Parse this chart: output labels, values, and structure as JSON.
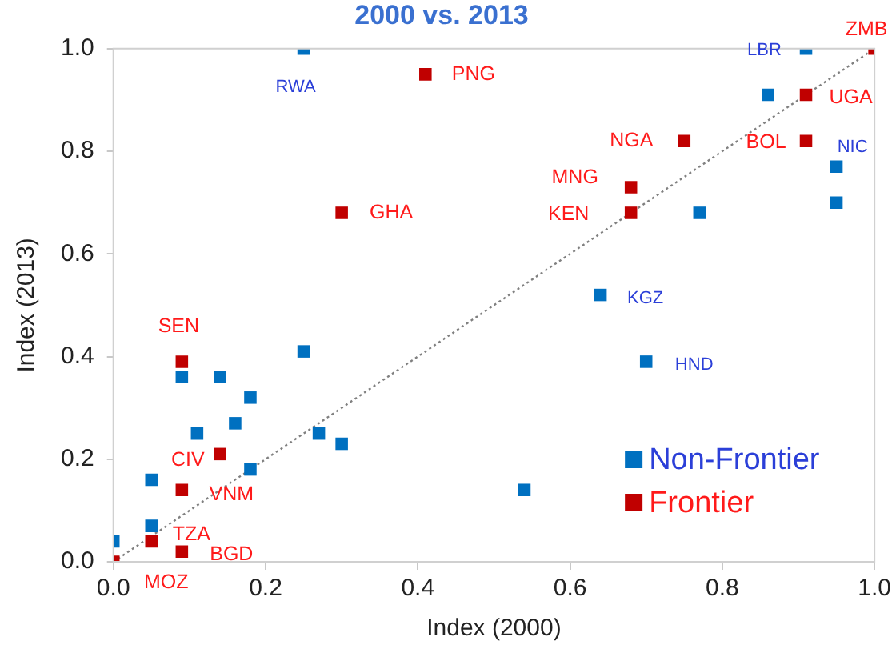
{
  "chart_data": {
    "type": "scatter",
    "title": "2000 vs. 2013",
    "xlabel": "Index (2000)",
    "ylabel": "Index (2013)",
    "xlim": [
      0,
      1
    ],
    "ylim": [
      0,
      1
    ],
    "xticks": [
      {
        "value": 0,
        "label": "0.0"
      },
      {
        "value": 0.2,
        "label": "0.2"
      },
      {
        "value": 0.4,
        "label": "0.4"
      },
      {
        "value": 0.6,
        "label": "0.6"
      },
      {
        "value": 0.8,
        "label": "0.8"
      },
      {
        "value": 1,
        "label": "1.0"
      }
    ],
    "yticks": [
      {
        "value": 0,
        "label": "0.0"
      },
      {
        "value": 0.2,
        "label": "0.2"
      },
      {
        "value": 0.4,
        "label": "0.4"
      },
      {
        "value": 0.6,
        "label": "0.6"
      },
      {
        "value": 0.8,
        "label": "0.8"
      },
      {
        "value": 1,
        "label": "1.0"
      }
    ],
    "grid": false,
    "legend": "bottom right",
    "marker": "square",
    "series": [
      {
        "name": "Non-Frontier",
        "color": "#0070c0",
        "x": [
          0.25,
          0.91,
          0.86,
          0.95,
          0.95,
          0.77,
          0.64,
          0.7,
          0.54,
          0,
          0.05,
          0.05,
          0.09,
          0.14,
          0.11,
          0.16,
          0.18,
          0.18,
          0.25,
          0.27,
          0.3
        ],
        "values": [
          1.0,
          1.0,
          0.91,
          0.77,
          0.7,
          0.68,
          0.52,
          0.39,
          0.14,
          0.04,
          0.16,
          0.07,
          0.36,
          0.36,
          0.25,
          0.27,
          0.32,
          0.18,
          0.41,
          0.25,
          0.23
        ]
      },
      {
        "name": "Frontier",
        "color": "#c00000",
        "x": [
          1.0,
          0.91,
          0.91,
          0.41,
          0.75,
          0.68,
          0.68,
          0.3,
          0.09,
          0.14,
          0.09,
          0.05,
          0.09,
          0
        ],
        "values": [
          1.0,
          0.91,
          0.82,
          0.95,
          0.82,
          0.73,
          0.68,
          0.68,
          0.39,
          0.21,
          0.14,
          0.04,
          0.02,
          0
        ]
      },
      {
        "type": "line",
        "color": "#808080",
        "line_style": "dotted",
        "marker": "none",
        "x": [
          0,
          1
        ],
        "values": [
          0,
          1
        ]
      }
    ],
    "annotations": [
      {
        "text": "RWA",
        "x": 0.25,
        "y": 1.0
      },
      {
        "text": "LBR",
        "x": 0.91,
        "y": 1.0
      },
      {
        "text": "NIC",
        "x": 0.95,
        "y": 0.77
      },
      {
        "text": "KGZ",
        "x": 0.64,
        "y": 0.52
      },
      {
        "text": "HND",
        "x": 0.7,
        "y": 0.39
      },
      {
        "text": "ZMB",
        "x": 1.0,
        "y": 1.0
      },
      {
        "text": "UGA",
        "x": 0.91,
        "y": 0.91
      },
      {
        "text": "BOL",
        "x": 0.91,
        "y": 0.82
      },
      {
        "text": "PNG",
        "x": 0.41,
        "y": 0.95
      },
      {
        "text": "NGA",
        "x": 0.75,
        "y": 0.82
      },
      {
        "text": "MNG",
        "x": 0.68,
        "y": 0.73
      },
      {
        "text": "KEN",
        "x": 0.68,
        "y": 0.68
      },
      {
        "text": "GHA",
        "x": 0.3,
        "y": 0.68
      },
      {
        "text": "SEN",
        "x": 0.09,
        "y": 0.39
      },
      {
        "text": "CIV",
        "x": 0.14,
        "y": 0.21
      },
      {
        "text": "VNM",
        "x": 0.09,
        "y": 0.14
      },
      {
        "text": "TZA",
        "x": 0.05,
        "y": 0.04
      },
      {
        "text": "BGD",
        "x": 0.09,
        "y": 0.02
      },
      {
        "text": "MOZ",
        "x": 0,
        "y": 0
      }
    ]
  }
}
